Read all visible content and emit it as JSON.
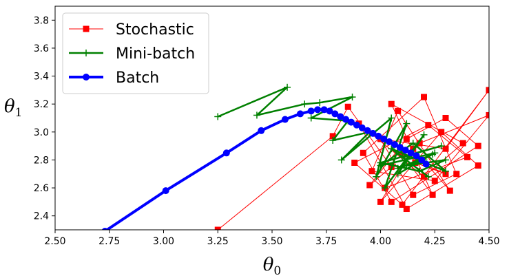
{
  "chart_data": {
    "type": "line",
    "xlabel": "θ0",
    "ylabel": "θ1",
    "xlim": [
      2.5,
      4.5
    ],
    "ylim": [
      2.3,
      3.9
    ],
    "xticks": [
      "2.50",
      "2.75",
      "3.00",
      "3.25",
      "3.50",
      "3.75",
      "4.00",
      "4.25",
      "4.50"
    ],
    "yticks": [
      "2.4",
      "2.6",
      "2.8",
      "3.0",
      "3.2",
      "3.4",
      "3.6",
      "3.8"
    ],
    "legend_position": "upper-left",
    "grid": false,
    "series": [
      {
        "name": "Stochastic",
        "color": "#ff0000",
        "marker": "square",
        "x": [
          3.25,
          3.78,
          3.85,
          4.05,
          3.95,
          4.12,
          4.3,
          4.45,
          4.05,
          3.92,
          4.2,
          4.35,
          4.15,
          4.0,
          4.3,
          4.5,
          4.1,
          3.88,
          4.22,
          4.4,
          4.02,
          4.18,
          4.5,
          4.25,
          3.96,
          4.08,
          4.32,
          4.15,
          4.0,
          4.28,
          4.45,
          4.12,
          3.9,
          4.2,
          4.38,
          4.05,
          4.24,
          4.1,
          4.3,
          4.16
        ],
        "y": [
          2.3,
          2.97,
          3.18,
          2.75,
          2.62,
          2.95,
          3.1,
          2.9,
          2.5,
          2.85,
          3.25,
          2.7,
          2.55,
          2.95,
          2.88,
          3.3,
          2.48,
          2.78,
          3.05,
          2.82,
          2.6,
          2.92,
          3.12,
          2.65,
          2.72,
          3.15,
          2.58,
          2.88,
          2.5,
          3.0,
          2.76,
          2.45,
          3.06,
          2.68,
          2.92,
          3.2,
          2.55,
          2.84,
          2.7,
          2.78
        ]
      },
      {
        "name": "Mini-batch",
        "color": "#008000",
        "marker": "plus",
        "x": [
          3.25,
          3.57,
          3.43,
          3.65,
          3.72,
          3.87,
          3.68,
          3.85,
          3.78,
          3.95,
          3.82,
          4.05,
          3.98,
          4.12,
          4.02,
          4.2,
          4.08,
          4.25,
          4.0,
          4.15,
          4.3,
          4.05,
          4.22,
          4.1,
          4.28,
          4.0,
          4.18,
          4.3,
          4.12,
          4.24,
          4.08,
          4.2
        ],
        "y": [
          3.11,
          3.32,
          3.12,
          3.2,
          3.21,
          3.25,
          3.1,
          3.08,
          2.94,
          3.0,
          2.8,
          3.1,
          2.68,
          3.06,
          2.6,
          2.98,
          2.7,
          2.85,
          2.76,
          2.92,
          2.72,
          2.88,
          2.68,
          2.82,
          2.9,
          2.78,
          2.72,
          2.8,
          2.76,
          2.84,
          2.74,
          2.8
        ]
      },
      {
        "name": "Batch",
        "color": "#0000ff",
        "marker": "circle",
        "x": [
          2.73,
          3.01,
          3.29,
          3.45,
          3.56,
          3.63,
          3.68,
          3.71,
          3.74,
          3.765,
          3.79,
          3.815,
          3.84,
          3.865,
          3.89,
          3.915,
          3.94,
          3.965,
          3.99,
          4.015,
          4.04,
          4.065,
          4.09,
          4.115,
          4.14,
          4.165,
          4.19,
          4.21
        ],
        "y": [
          2.29,
          2.58,
          2.85,
          3.01,
          3.09,
          3.13,
          3.15,
          3.16,
          3.16,
          3.15,
          3.13,
          3.11,
          3.09,
          3.07,
          3.05,
          3.03,
          3.01,
          2.99,
          2.97,
          2.95,
          2.93,
          2.91,
          2.89,
          2.87,
          2.85,
          2.83,
          2.8,
          2.77
        ]
      }
    ]
  }
}
